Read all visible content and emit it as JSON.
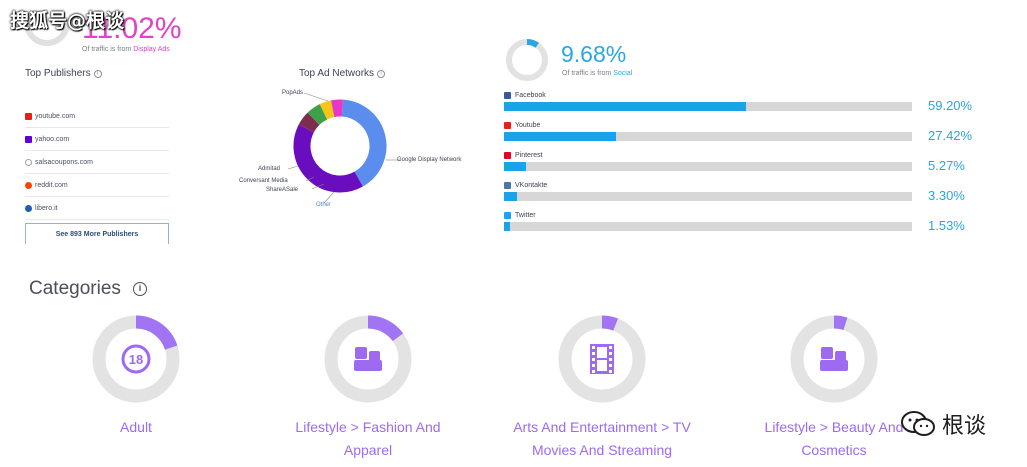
{
  "watermark": {
    "top_left": "搜狐号@根谈",
    "bottom_right": "根谈"
  },
  "display_ads": {
    "percent": "11.02%",
    "subtitle_prefix": "Of traffic is from",
    "subtitle_link": "Display Ads",
    "share": 0.1102
  },
  "top_publishers": {
    "title": "Top Publishers",
    "items": [
      {
        "name": "youtube.com",
        "icon": "youtube-icon",
        "color": "#e62117"
      },
      {
        "name": "yahoo.com",
        "icon": "yahoo-icon",
        "color": "#6001d2"
      },
      {
        "name": "salsacoupons.com",
        "icon": "globe-icon",
        "color": "#9aa0aa"
      },
      {
        "name": "reddit.com",
        "icon": "reddit-icon",
        "color": "#ff4500"
      },
      {
        "name": "libero.it",
        "icon": "libero-icon",
        "color": "#1f5fa8"
      }
    ],
    "more_button": "See 893 More Publishers"
  },
  "top_ad_networks": {
    "title": "Top Ad Networks",
    "labels": {
      "popads": "PopAds",
      "google": "Google Display Network",
      "admitad": "Admitad",
      "conversant": "Conversant Media",
      "shareasale": "ShareASale",
      "other": "Other"
    }
  },
  "chart_data": {
    "type": "pie",
    "title": "Top Ad Networks",
    "donut": true,
    "categories": [
      "Google Display Network",
      "PopAds",
      "Admitad",
      "Conversant Media",
      "ShareASale",
      "Other"
    ],
    "values": [
      40,
      40,
      5,
      5,
      4,
      4
    ],
    "colors": [
      "#5a8dee",
      "#6a0dbf",
      "#7f2d4e",
      "#3fa04a",
      "#f5c518",
      "#e637c8"
    ]
  },
  "social": {
    "percent": "9.68%",
    "subtitle_prefix": "Of traffic is from",
    "subtitle_link": "Social",
    "share": 0.0968,
    "items": [
      {
        "name": "Facebook",
        "value": "59.20%",
        "fraction": 0.592,
        "icon": "facebook-icon",
        "color": "#3b5998"
      },
      {
        "name": "Youtube",
        "value": "27.42%",
        "fraction": 0.2742,
        "icon": "youtube-icon",
        "color": "#e62117"
      },
      {
        "name": "Pinterest",
        "value": "5.27%",
        "fraction": 0.0527,
        "icon": "pinterest-icon",
        "color": "#e60023"
      },
      {
        "name": "VKontakte",
        "value": "3.30%",
        "fraction": 0.033,
        "icon": "vk-icon",
        "color": "#4a76a8"
      },
      {
        "name": "Twitter",
        "value": "1.53%",
        "fraction": 0.0153,
        "icon": "twitter-icon",
        "color": "#1da1f2"
      }
    ]
  },
  "categories": {
    "title": "Categories",
    "items": [
      {
        "label_line1": "Adult",
        "label_line2": "",
        "share": 0.2,
        "icon": "adult-18-icon"
      },
      {
        "label_line1": "Lifestyle > Fashion And",
        "label_line2": "Apparel",
        "share": 0.15,
        "icon": "lifestyle-icon"
      },
      {
        "label_line1": "Arts And Entertainment > TV",
        "label_line2": "Movies And Streaming",
        "share": 0.06,
        "icon": "film-icon"
      },
      {
        "label_line1": "Lifestyle > Beauty And",
        "label_line2": "Cosmetics",
        "share": 0.05,
        "icon": "lifestyle-icon"
      }
    ]
  }
}
